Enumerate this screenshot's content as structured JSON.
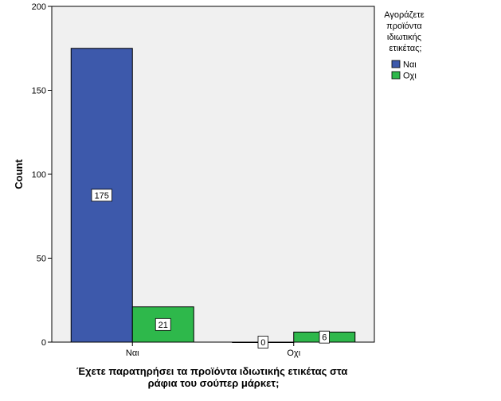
{
  "chart_data": {
    "type": "bar",
    "categories": [
      "Ναι",
      "Οχι"
    ],
    "series": [
      {
        "name": "Ναι",
        "values": [
          175,
          0
        ],
        "color": "#3D59AB"
      },
      {
        "name": "Οχι",
        "values": [
          21,
          6
        ],
        "color": "#2EB84B"
      }
    ],
    "xlabel_lines": [
      "Έχετε παρατηρήσει τα προϊόντα ιδιωτικής ετικέτας στα",
      "ράφια του σούπερ μάρκετ;"
    ],
    "ylabel": "Count",
    "yticks": [
      0,
      50,
      100,
      150,
      200
    ],
    "ylim": [
      0,
      200
    ],
    "legend_title_lines": [
      "Αγοράζετε",
      "προϊόντα",
      "ιδιωτικής",
      "ετικέτας;"
    ],
    "legend_position": "right",
    "plot_background": "#F0F0F0",
    "grid": false
  }
}
